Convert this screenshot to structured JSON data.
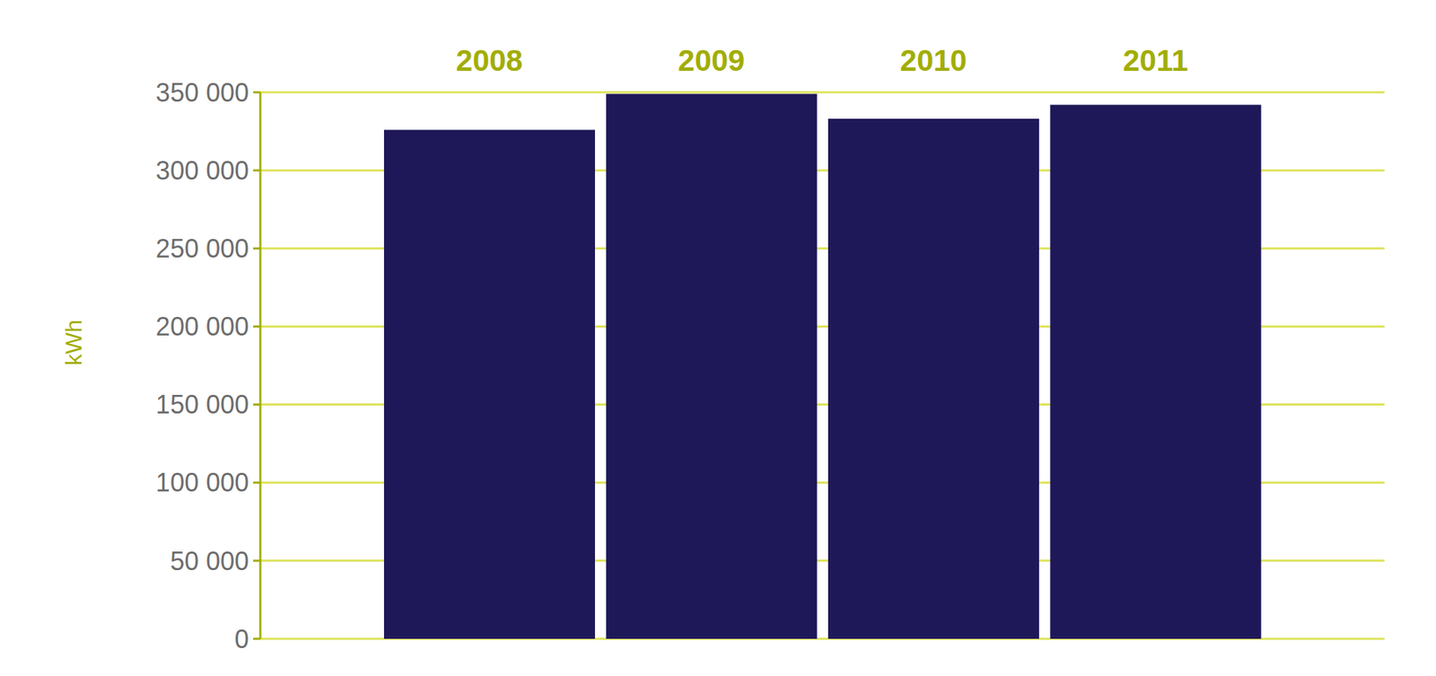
{
  "chart_data": {
    "type": "bar",
    "y_label": "kWh",
    "categories": [
      "2008",
      "2009",
      "2010",
      "2011"
    ],
    "values": [
      326000,
      349000,
      333000,
      342000
    ],
    "color": "#1f1858",
    "ylim": [
      0,
      350000
    ],
    "yticks": [
      0,
      {
        "value": 50000,
        "label": "50 000"
      },
      {
        "value": 100000,
        "label": "100 000"
      },
      {
        "value": 150000,
        "label": "150 000"
      },
      {
        "value": 200000,
        "label": "200 000"
      },
      {
        "value": 250000,
        "label": "250 000"
      },
      {
        "value": 300000,
        "label": "300 000"
      },
      {
        "value": 350000,
        "label": "350 000"
      }
    ],
    "grid": true
  }
}
